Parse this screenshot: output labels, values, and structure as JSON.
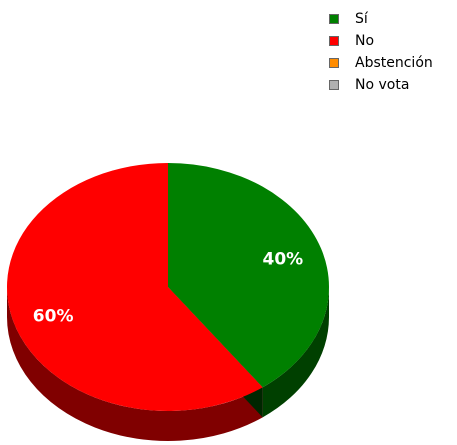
{
  "chart_data": {
    "type": "pie",
    "categories": [
      "Sí",
      "No",
      "Abstención",
      "No vota"
    ],
    "values": [
      40,
      60,
      0,
      0
    ],
    "labels": [
      "40%",
      "60%"
    ],
    "colors": [
      "#008000",
      "#ff0000",
      "#ff8c00",
      "#b0b0b0"
    ],
    "legend_position": "top-right",
    "style": "3d"
  }
}
